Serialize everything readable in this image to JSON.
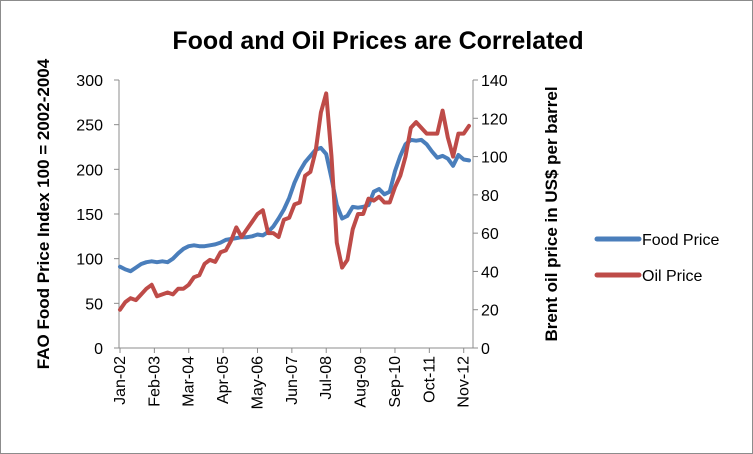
{
  "chart_data": {
    "type": "line",
    "title": "Food and Oil Prices are Correlated",
    "ylabel_left": "FAO Food Price Index 100 = 2002-2004",
    "ylabel_right": "Brent oil price in US$ per barrel",
    "xlabel": "",
    "x_tick_labels": [
      "Jan-02",
      "Feb-03",
      "Mar-04",
      "Apr-05",
      "May-06",
      "Jun-07",
      "Jul-08",
      "Aug-09",
      "Sep-10",
      "Oct-11",
      "Nov-12"
    ],
    "y_left_ticks": [
      "0",
      "50",
      "100",
      "150",
      "200",
      "250",
      "300"
    ],
    "y_right_ticks": [
      "0",
      "20",
      "40",
      "60",
      "80",
      "100",
      "120",
      "140"
    ],
    "ylim_left": [
      0,
      300
    ],
    "ylim_right": [
      0,
      140
    ],
    "grid": false,
    "legend_position": "right",
    "x": [
      "Jan-02",
      "Mar-02",
      "May-02",
      "Jul-02",
      "Sep-02",
      "Nov-02",
      "Jan-03",
      "Mar-03",
      "May-03",
      "Jul-03",
      "Sep-03",
      "Nov-03",
      "Jan-04",
      "Mar-04",
      "May-04",
      "Jul-04",
      "Sep-04",
      "Nov-04",
      "Jan-05",
      "Mar-05",
      "May-05",
      "Jul-05",
      "Sep-05",
      "Nov-05",
      "Jan-06",
      "Mar-06",
      "May-06",
      "Jul-06",
      "Sep-06",
      "Nov-06",
      "Jan-07",
      "Mar-07",
      "May-07",
      "Jul-07",
      "Sep-07",
      "Nov-07",
      "Jan-08",
      "Mar-08",
      "May-08",
      "Jul-08",
      "Sep-08",
      "Nov-08",
      "Jan-09",
      "Mar-09",
      "May-09",
      "Jul-09",
      "Sep-09",
      "Nov-09",
      "Jan-10",
      "Mar-10",
      "May-10",
      "Jul-10",
      "Sep-10",
      "Nov-10",
      "Jan-11",
      "Mar-11",
      "May-11",
      "Jul-11",
      "Sep-11",
      "Nov-11",
      "Jan-12",
      "Mar-12",
      "May-12",
      "Jul-12",
      "Sep-12",
      "Nov-12",
      "Jan-13"
    ],
    "series": [
      {
        "name": "Food Price",
        "axis": "left",
        "color": "#4a7ebb",
        "values": [
          91,
          88,
          86,
          90,
          94,
          96,
          97,
          96,
          97,
          96,
          100,
          106,
          111,
          114,
          115,
          114,
          114,
          115,
          116,
          118,
          121,
          122,
          123,
          124,
          124,
          125,
          127,
          126,
          130,
          136,
          145,
          155,
          168,
          185,
          198,
          208,
          215,
          222,
          224,
          217,
          190,
          160,
          145,
          148,
          158,
          157,
          158,
          160,
          175,
          178,
          172,
          175,
          198,
          215,
          228,
          233,
          232,
          233,
          228,
          220,
          213,
          215,
          212,
          204,
          216,
          211,
          210
        ]
      },
      {
        "name": "Oil Price",
        "axis": "right",
        "color": "#be4b48",
        "values": [
          20,
          24,
          26,
          25,
          28,
          31,
          33,
          27,
          28,
          29,
          28,
          31,
          31,
          33,
          37,
          38,
          44,
          46,
          45,
          50,
          51,
          56,
          63,
          58,
          62,
          66,
          70,
          72,
          60,
          60,
          58,
          67,
          68,
          75,
          76,
          90,
          92,
          103,
          123,
          133,
          100,
          55,
          42,
          46,
          62,
          70,
          70,
          78,
          77,
          79,
          76,
          76,
          84,
          90,
          100,
          115,
          118,
          115,
          112,
          112,
          112,
          124,
          110,
          100,
          112,
          112,
          116
        ]
      }
    ]
  }
}
